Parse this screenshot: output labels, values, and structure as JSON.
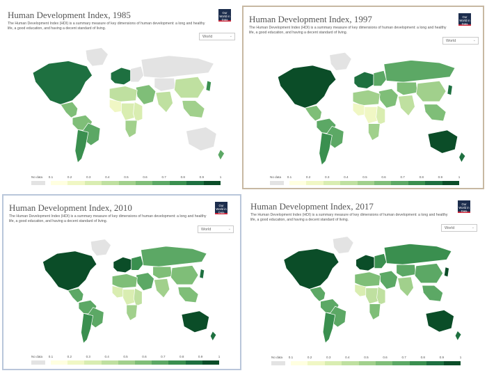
{
  "panels": [
    {
      "title": "Human Development Index, 1985",
      "subtitle": "The Human Development Index (HDI) is a summary measure of key dimensions of human development: a long and healthy life, a good education, and having a decent standard of living.",
      "logo": "Our World in Data",
      "selector": "World",
      "region_levels": {
        "north_america": 8,
        "greenland": 0,
        "central_america": 5,
        "south_america_north": 5,
        "south_america_east": 6,
        "south_america_south": 7,
        "europe_west": 8,
        "europe_east": 0,
        "russia": 0,
        "middle_east": 5,
        "north_africa": 3,
        "west_africa": 1,
        "central_africa": 2,
        "east_africa": 2,
        "southern_africa": 4,
        "central_asia": 0,
        "south_asia": 3,
        "china": 3,
        "southeast_asia": 4,
        "japan": 7,
        "australia": 0,
        "new_zealand": 6
      }
    },
    {
      "title": "Human Development Index, 1997",
      "subtitle": "The Human Development Index (HDI) is a summary measure of key dimensions of human development: a long and healthy life, a good education, and having a decent standard of living.",
      "logo": "Our World in Data",
      "selector": "World",
      "region_levels": {
        "north_america": 9,
        "greenland": 0,
        "central_america": 5,
        "south_america_north": 6,
        "south_america_east": 6,
        "south_america_south": 7,
        "europe_west": 8,
        "europe_east": 6,
        "russia": 6,
        "middle_east": 5,
        "north_africa": 4,
        "west_africa": 1,
        "central_africa": 1,
        "east_africa": 2,
        "southern_africa": 4,
        "central_asia": 5,
        "south_asia": 3,
        "china": 4,
        "southeast_asia": 5,
        "japan": 8,
        "australia": 9,
        "new_zealand": 8
      }
    },
    {
      "title": "Human Development Index, 2010",
      "subtitle": "The Human Development Index (HDI) is a summary measure of key dimensions of human development: a long and healthy life, a good education, and having a decent standard of living.",
      "logo": "Our World in Data",
      "selector": "World",
      "region_levels": {
        "north_america": 9,
        "greenland": 0,
        "central_america": 6,
        "south_america_north": 6,
        "south_america_east": 6,
        "south_america_south": 7,
        "europe_west": 9,
        "europe_east": 7,
        "russia": 6,
        "middle_east": 6,
        "north_africa": 5,
        "west_africa": 2,
        "central_africa": 2,
        "east_africa": 3,
        "southern_africa": 4,
        "central_asia": 5,
        "south_asia": 4,
        "china": 5,
        "southeast_asia": 5,
        "japan": 8,
        "australia": 9,
        "new_zealand": 8
      }
    },
    {
      "title": "Human Development Index, 2017",
      "subtitle": "The Human Development Index (HDI) is a summary measure of key dimensions of human development: a long and healthy life, a good education, and having a decent standard of living.",
      "logo": "Our World in Data",
      "selector": "World",
      "region_levels": {
        "north_america": 9,
        "greenland": 0,
        "central_america": 6,
        "south_america_north": 6,
        "south_america_east": 6,
        "south_america_south": 7,
        "europe_west": 9,
        "europe_east": 7,
        "russia": 7,
        "middle_east": 6,
        "north_africa": 5,
        "west_africa": 2,
        "central_africa": 3,
        "east_africa": 3,
        "southern_africa": 5,
        "central_asia": 6,
        "south_asia": 4,
        "china": 6,
        "southeast_asia": 6,
        "japan": 9,
        "australia": 9,
        "new_zealand": 8
      }
    }
  ],
  "legend": {
    "nodata_label": "No data",
    "ticks": [
      "0.1",
      "0.2",
      "0.3",
      "0.4",
      "0.5",
      "0.6",
      "0.7",
      "0.8",
      "0.9",
      "1"
    ],
    "colors": [
      "#ffffe0",
      "#f0f7c4",
      "#d9edb1",
      "#bfe0a0",
      "#a1d08c",
      "#7fbe78",
      "#5ca865",
      "#3a8f4f",
      "#1e7040",
      "#0b4d28"
    ],
    "nodata_color": "#e3e3e3"
  }
}
